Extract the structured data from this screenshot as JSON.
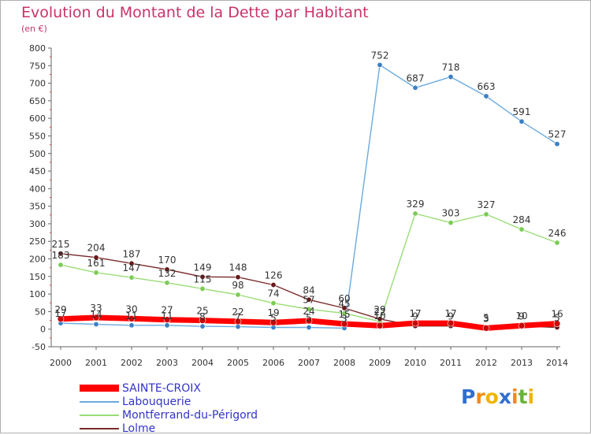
{
  "chart_data": {
    "type": "line",
    "title": "Evolution du Montant de la Dette par Habitant",
    "subtitle": "(en €)",
    "xlabel": "",
    "ylabel": "",
    "ylim": [
      -50,
      800
    ],
    "yticks": [
      "800",
      "750",
      "700",
      "650",
      "600",
      "550",
      "500",
      "450",
      "400",
      "350",
      "300",
      "250",
      "200",
      "150",
      "100",
      "50",
      "0",
      "-50"
    ],
    "categories": [
      "2000",
      "2001",
      "2002",
      "2003",
      "2004",
      "2005",
      "2006",
      "2007",
      "2008",
      "2009",
      "2010",
      "2011",
      "2012",
      "2013",
      "2014"
    ],
    "grid": false,
    "legend": "bottom-left",
    "series": [
      {
        "name": "SAINTE-CROIX",
        "color": "#ff0000",
        "marker": "#cc0000",
        "values": [
          29,
          33,
          30,
          27,
          25,
          22,
          19,
          24,
          15,
          10,
          17,
          17,
          3,
          10,
          16
        ],
        "labels": [
          "29",
          "33",
          "30",
          "27",
          "25",
          "22",
          "19",
          "24",
          "15",
          "10",
          "17",
          "17",
          "3",
          "10",
          "16"
        ]
      },
      {
        "name": "Labouquerie",
        "color": "#6aaae0",
        "marker": "#3a7fc6",
        "values": [
          17,
          14,
          11,
          11,
          8,
          7,
          5,
          5,
          3,
          752,
          687,
          718,
          663,
          591,
          527
        ],
        "labels": [
          "17",
          "14",
          "11",
          "11",
          "8",
          "7",
          "5",
          "5",
          "3",
          "752",
          "687",
          "718",
          "663",
          "591",
          "527"
        ]
      },
      {
        "name": "Montferrand-du-Périgord",
        "color": "#99dd77",
        "marker": "#7ccc55",
        "values": [
          183,
          161,
          147,
          132,
          115,
          98,
          74,
          57,
          45,
          22,
          329,
          303,
          327,
          284,
          246
        ],
        "labels": [
          "183",
          "161",
          "147",
          "132",
          "115",
          "98",
          "74",
          "57",
          "45",
          "22",
          "329",
          "303",
          "327",
          "284",
          "246"
        ]
      },
      {
        "name": "Lolme",
        "color": "#7a2a2a",
        "marker": "#661a1a",
        "values": [
          215,
          204,
          187,
          170,
          149,
          148,
          126,
          84,
          60,
          29,
          9,
          9,
          5,
          9,
          5
        ],
        "labels": [
          "215",
          "204",
          "187",
          "170",
          "149",
          "148",
          "126",
          "84",
          "60",
          "29",
          "9",
          "9",
          "5",
          "9",
          "5"
        ]
      }
    ]
  },
  "logo": {
    "text": "Proxiti",
    "letters": [
      "P",
      "r",
      "o",
      "x",
      "i",
      "t",
      "i"
    ]
  }
}
